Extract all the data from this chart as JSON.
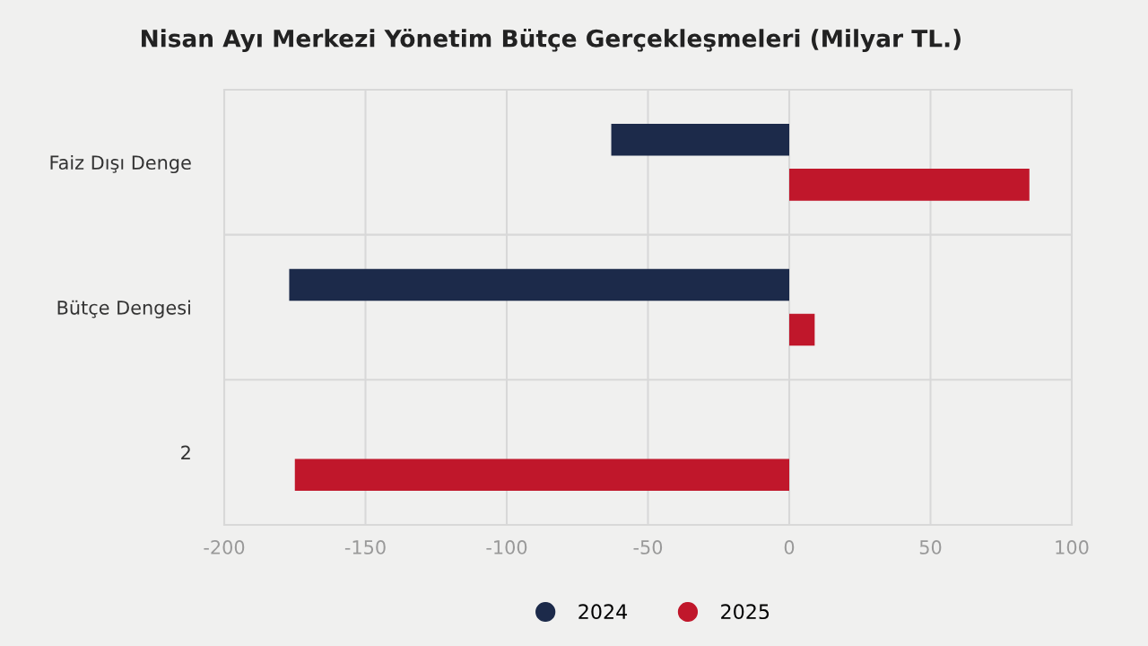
{
  "chart_data": {
    "type": "bar",
    "orientation": "horizontal",
    "title": "Nisan Ayı Merkezi Yönetim Bütçe Gerçekleşmeleri (Milyar TL.)",
    "categories": [
      "Faiz Dışı Denge",
      "Bütçe Dengesi",
      "2"
    ],
    "series": [
      {
        "name": "2024",
        "color": "#1c2a4a",
        "values": [
          -63,
          -177,
          null
        ]
      },
      {
        "name": "2025",
        "color": "#c0172b",
        "values": [
          85,
          9,
          -175
        ]
      }
    ],
    "xlim": [
      -200,
      100
    ],
    "xticks": [
      -200,
      -150,
      -100,
      -50,
      0,
      50,
      100
    ],
    "grid": true,
    "legend": "bottom"
  }
}
